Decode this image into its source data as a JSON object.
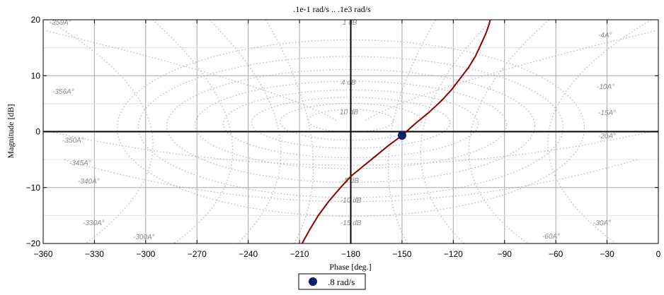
{
  "chart_data": {
    "type": "line",
    "title": ".1e-1 rad/s .. .1e3 rad/s",
    "xlabel": "Phase [deg.]",
    "ylabel": "Magnitude [dB]",
    "xlim": [
      -360,
      0
    ],
    "ylim": [
      -20,
      20
    ],
    "xticks": [
      -360,
      -330,
      -300,
      -270,
      -240,
      -210,
      -180,
      -150,
      -120,
      -90,
      -60,
      -30,
      0
    ],
    "xtick_labels": [
      "−360",
      "−330",
      "−300",
      "−270",
      "−240",
      "−210",
      "−180",
      "−150",
      "−120",
      "−90",
      "−60",
      "−30",
      "0"
    ],
    "yticks": [
      -20,
      -10,
      0,
      10,
      20
    ],
    "ytick_labels": [
      "−20",
      "−10",
      "0",
      "10",
      "20"
    ],
    "grid": true,
    "line_color": "#8b0000",
    "series": [
      {
        "x": [
          -208.5,
          -204,
          -199,
          -193,
          -186,
          -180,
          -174,
          -166,
          -158,
          -150,
          -142,
          -134,
          -127,
          -121,
          -116,
          -111,
          -107,
          -104,
          -101,
          -99,
          -98
        ],
        "y": [
          -20,
          -17.5,
          -15,
          -12.5,
          -10,
          -8,
          -6.5,
          -4.5,
          -2.5,
          -0.7,
          1.5,
          3.5,
          5.5,
          7.5,
          9.5,
          11.5,
          13.5,
          15.5,
          17.5,
          19.2,
          20.5
        ]
      }
    ],
    "marker": {
      "x": -150,
      "y": -0.7,
      "color": "#0a1f6e",
      "label": ".8 rad/s"
    },
    "legend": {
      "placement": "bottom-center",
      "entries": [
        ".8 rad/s"
      ]
    },
    "nichols_labels": {
      "magnitude": [
        "1 dB",
        "4 dB",
        "10 dB",
        "-5 dB",
        "-10 dB",
        "-15 dB"
      ],
      "phase": [
        "-359A°",
        "-356A°",
        "-350A°",
        "-345A°",
        "-340A°",
        "-330A°",
        "-300A°",
        "-4A°",
        "-10A°",
        "-15A°",
        "-20A°",
        "-30A°",
        "-60A°"
      ]
    }
  }
}
